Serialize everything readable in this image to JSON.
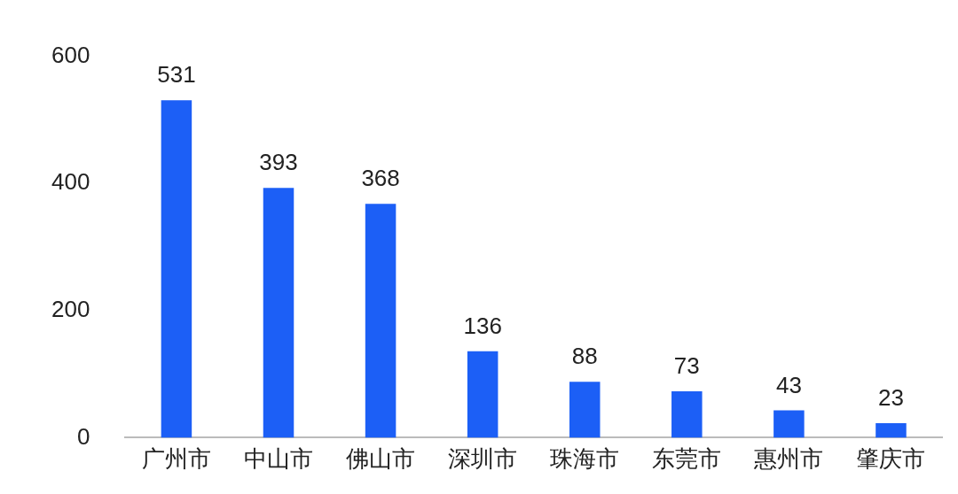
{
  "chart_data": {
    "type": "bar",
    "categories": [
      "广州市",
      "中山市",
      "佛山市",
      "深圳市",
      "珠海市",
      "东莞市",
      "惠州市",
      "肇庆市"
    ],
    "values": [
      531,
      393,
      368,
      136,
      88,
      73,
      43,
      23
    ],
    "color": "#1c5ff6",
    "ylim": [
      0,
      600
    ],
    "yticks": [
      0,
      200,
      400,
      600
    ],
    "grid": false,
    "legend": false,
    "data_labels": true
  }
}
